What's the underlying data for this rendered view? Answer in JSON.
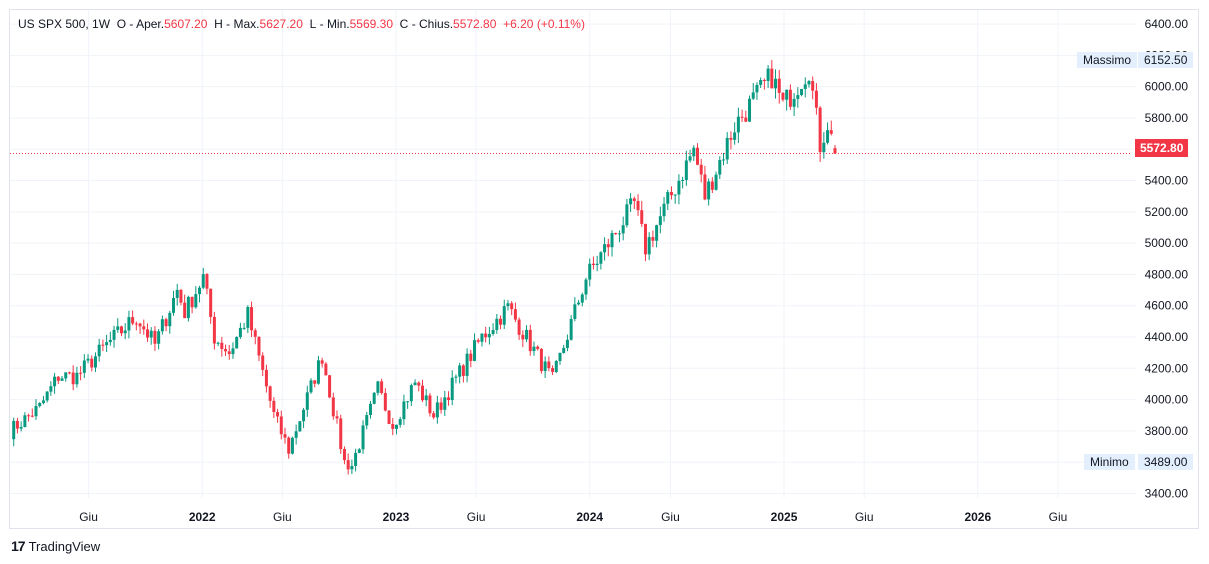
{
  "legend": {
    "symbol": "US SPX 500",
    "interval": "1W",
    "open_label": "O",
    "open_prefix": "- Aper.",
    "open_value": "5607.20",
    "high_label": "H",
    "high_prefix": "- Max.",
    "high_value": "5627.20",
    "low_label": "L",
    "low_prefix": "- Min.",
    "low_value": "5569.30",
    "close_label": "C",
    "close_prefix": "- Chius.",
    "close_value": "5572.80",
    "change": "+6.20",
    "change_pct": "(+0.11%)"
  },
  "markers": {
    "high_label": "Massimo",
    "high_value": "6152.50",
    "low_label": "Minimo",
    "low_value": "3489.00",
    "last_price": "5572.80"
  },
  "footer": {
    "brand": "TradingView",
    "logo": "17"
  },
  "colors": {
    "up": "#089981",
    "down": "#f23645",
    "grid": "#f0f3fa",
    "axis_text": "#131722"
  },
  "chart_data": {
    "type": "candlestick",
    "title": "US SPX 500",
    "y_ticks": [
      3400,
      3600,
      3800,
      4000,
      4200,
      4400,
      4600,
      4800,
      5000,
      5200,
      5400,
      5600,
      5800,
      6000,
      6200,
      6400
    ],
    "y_tick_labels": [
      "3400.00",
      "3600.00",
      "3800.00",
      "4000.00",
      "4200.00",
      "4400.00",
      "4600.00",
      "4800.00",
      "5000.00",
      "5200.00",
      "5400.00",
      "5600.00",
      "5800.00",
      "6000.00",
      "6200.00",
      "6400.00"
    ],
    "ylim": [
      3320,
      6490
    ],
    "x_ticks": [
      {
        "label": "Giu",
        "date": "2021-06-01"
      },
      {
        "label": "2022",
        "date": "2022-01-01"
      },
      {
        "label": "Giu",
        "date": "2022-06-01"
      },
      {
        "label": "2023",
        "date": "2023-01-01"
      },
      {
        "label": "Giu",
        "date": "2023-06-01"
      },
      {
        "label": "2024",
        "date": "2024-01-01"
      },
      {
        "label": "Giu",
        "date": "2024-06-01"
      },
      {
        "label": "2025",
        "date": "2025-01-01"
      },
      {
        "label": "Giu",
        "date": "2025-06-01"
      },
      {
        "label": "2026",
        "date": "2026-01-01"
      },
      {
        "label": "Giu",
        "date": "2026-06-01"
      }
    ],
    "xlim": [
      "2021-01-04",
      "2026-10-26"
    ],
    "weekly_close_anchors": [
      [
        "2021-01-04",
        3800
      ],
      [
        "2021-03-01",
        3950
      ],
      [
        "2021-04-05",
        4150
      ],
      [
        "2021-05-10",
        4150
      ],
      [
        "2021-07-05",
        4350
      ],
      [
        "2021-08-30",
        4530
      ],
      [
        "2021-10-04",
        4350
      ],
      [
        "2021-11-15",
        4700
      ],
      [
        "2021-11-29",
        4560
      ],
      [
        "2022-01-03",
        4780
      ],
      [
        "2022-01-24",
        4400
      ],
      [
        "2022-02-21",
        4300
      ],
      [
        "2022-03-28",
        4540
      ],
      [
        "2022-05-16",
        3900
      ],
      [
        "2022-06-13",
        3680
      ],
      [
        "2022-08-15",
        4280
      ],
      [
        "2022-09-26",
        3600
      ],
      [
        "2022-10-10",
        3580
      ],
      [
        "2022-11-28",
        4070
      ],
      [
        "2022-12-26",
        3840
      ],
      [
        "2023-02-06",
        4110
      ],
      [
        "2023-03-13",
        3900
      ],
      [
        "2023-06-12",
        4400
      ],
      [
        "2023-07-31",
        4590
      ],
      [
        "2023-10-23",
        4120
      ],
      [
        "2023-12-25",
        4780
      ],
      [
        "2024-03-25",
        5250
      ],
      [
        "2024-04-15",
        4970
      ],
      [
        "2024-07-15",
        5600
      ],
      [
        "2024-08-05",
        5300
      ],
      [
        "2024-09-30",
        5750
      ],
      [
        "2024-12-09",
        6070
      ],
      [
        "2024-12-30",
        5880
      ],
      [
        "2025-02-17",
        6120
      ],
      [
        "2025-03-10",
        5630
      ],
      [
        "2025-03-24",
        5770
      ],
      [
        "2025-04-07",
        5572.8
      ]
    ],
    "last_candle": {
      "date": "2025-04-07",
      "open": 5607.2,
      "high": 5627.2,
      "low": 5569.3,
      "close": 5572.8
    },
    "period_high": 6152.5,
    "period_low": 3489.0
  }
}
